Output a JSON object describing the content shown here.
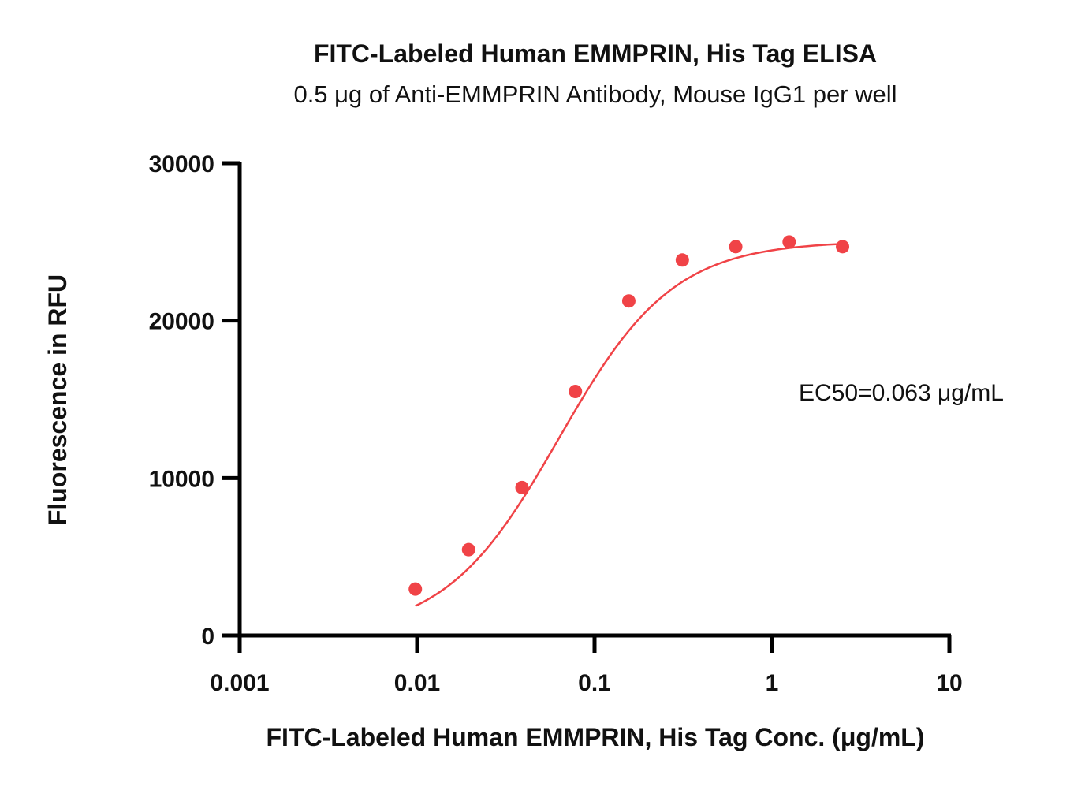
{
  "chart_data": {
    "type": "scatter",
    "title": "FITC-Labeled Human EMMPRIN, His Tag ELISA",
    "subtitle": "0.5 μg of Anti-EMMPRIN Antibody, Mouse IgG1 per well",
    "xlabel": "FITC-Labeled Human EMMPRIN, His Tag Conc. (μg/mL)",
    "ylabel": "Fluorescence in RFU",
    "x_scale": "log",
    "xlim": [
      0.001,
      10
    ],
    "ylim": [
      0,
      30000
    ],
    "x_ticks": [
      0.001,
      0.01,
      0.1,
      1,
      10
    ],
    "x_tick_labels": [
      "0.001",
      "0.01",
      "0.1",
      "1",
      "10"
    ],
    "y_ticks": [
      0,
      10000,
      20000,
      30000
    ],
    "y_tick_labels": [
      "0",
      "10000",
      "20000",
      "30000"
    ],
    "grid": false,
    "series": [
      {
        "color": "#f04347",
        "x": [
          0.00977,
          0.0195,
          0.039,
          0.078,
          0.156,
          0.3125,
          0.625,
          1.25,
          2.5
        ],
        "values": [
          2950,
          5450,
          9400,
          15500,
          21250,
          23850,
          24700,
          25000,
          24700
        ],
        "fit_curve": true
      }
    ],
    "annotations": [
      {
        "text": "EC50=0.063 μg/mL"
      }
    ]
  }
}
